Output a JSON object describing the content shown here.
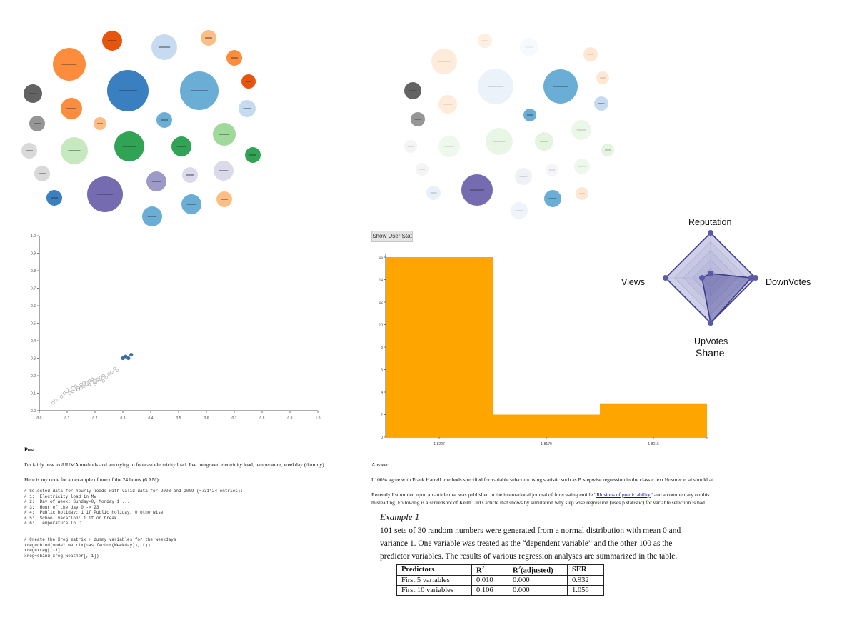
{
  "bubble_panel": {
    "colors": {
      "blue_dark": "#3a7fbf",
      "blue_mid": "#6aaed6",
      "blue_light": "#c6dbef",
      "orange_dark": "#e6550d",
      "orange_mid": "#fd8d3c",
      "orange_light": "#fdbe85",
      "green_dark": "#31a354",
      "green_mid": "#a1d99b",
      "green_light": "#c7e9c0",
      "purple_dark": "#756bb1",
      "purple_mid": "#9e9ac8",
      "purple_light": "#dadaeb",
      "gray_dark": "#636363",
      "gray_mid": "#969696",
      "gray_light": "#d9d9d9"
    }
  },
  "scatter": {
    "x_ticks": [
      "0.0",
      "0.1",
      "0.2",
      "0.3",
      "0.4",
      "0.5",
      "0.6",
      "0.7",
      "0.8",
      "0.9",
      "1.0"
    ],
    "y_ticks": [
      "0.0",
      "0.1",
      "0.2",
      "0.3",
      "0.4",
      "0.5",
      "0.6",
      "0.7",
      "0.8",
      "0.9",
      "1.0"
    ]
  },
  "show_user_button": "Show User Stat",
  "histogram": {
    "chart_data": {
      "type": "bar",
      "categories": [
        "1-8227",
        "1-8170",
        "1-8016"
      ],
      "values": [
        16,
        2,
        3
      ],
      "ylim": [
        0,
        16
      ],
      "y_ticks": [
        "0",
        "2",
        "4",
        "6",
        "8",
        "10",
        "12",
        "14",
        "16"
      ],
      "bar_color": "#ffa500"
    }
  },
  "radar": {
    "name": "Shane",
    "axes": [
      "Reputation",
      "DownVotes",
      "UpVotes",
      "Views"
    ],
    "fill": "#9090c8",
    "stroke": "#3b3b8f"
  },
  "post_left": {
    "heading": "Post",
    "line1": "I'm fairly new to ARIMA methods and am trying to forecast electricity load. I've integrated electricity load, temperature, weekday (dummy), public",
    "line2": "Here is my code for an example of one of the 24 hours (6 AM):",
    "code1": "# Selected data for hourly loads with valid data for 2008 and 2009 (=731*24 entries):\n# 1:  Electricity load in MW\n# 2:  Day of week: Sunday=0, Monday 1 ...\n# 3:  Hour of the day 0 -> 23\n# 4:  Public holiday: 1 if Public holiday, 0 otherwise\n# 5:  School vacation: 1 if on break\n# 6:  Temperature in C",
    "code2": "# Create the Xreg matrix + dummy variables for the weekdays\nxreg=cbind(model.matrix(~as.factor(Weekday)),tt))\nxreg=xreg[,-1]\nxreg=cbind(xreg,weather[,-1])"
  },
  "answer_right": {
    "heading": "Answer:",
    "line1": "I 100% agree with Frank Harrell. methods specified for variable selection using statistic such as P, stepwise regression in the classic text Hosmer et al should at",
    "line2_a": "Recently I stumbled upon an article that was published in the international journal of forecasting entitle \"",
    "line2_link": "Illusions of predictability",
    "line2_b": "\" and a commentary on this",
    "line3": "misleading. Following is a screenshot of Keith Ord's article that shows by simulation why step wise regression (uses p statistic) for variable selection is bad.",
    "example_title": "Example 1",
    "example_body": "101 sets of 30 random numbers were generated from a normal distribution with mean 0 and variance 1. One variable was treated as the “dependent variable” and the other 100 as the predictor variables.  The results of various regression analyses are summarized in the table.",
    "table": {
      "headers": [
        "Predictors",
        "R2",
        "R2(adjusted)",
        "SER"
      ],
      "rows": [
        [
          "First 5 variables",
          "0.010",
          "0.000",
          "0.932"
        ],
        [
          "First 10 variables",
          "0.106",
          "0.000",
          "1.056"
        ]
      ]
    }
  }
}
